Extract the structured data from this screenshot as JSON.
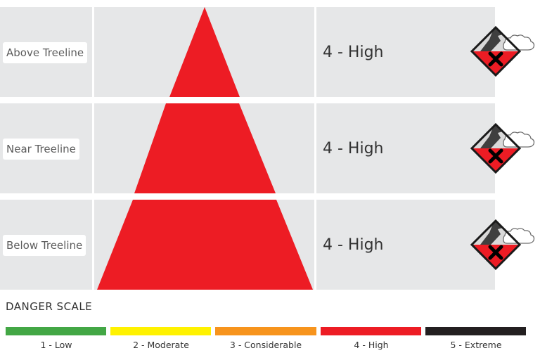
{
  "elevations": [
    {
      "label": "Above Treeline",
      "rating": "4 - High"
    },
    {
      "label": "Near Treeline",
      "rating": "4 - High"
    },
    {
      "label": "Below Treeline",
      "rating": "4 - High"
    }
  ],
  "icons": [
    "danger-level-4-high-icon",
    "danger-level-4-high-icon",
    "danger-level-4-high-icon"
  ],
  "danger_scale": {
    "title": "DANGER SCALE",
    "levels": [
      {
        "label": "1 - Low",
        "color": "#43a745"
      },
      {
        "label": "2 - Moderate",
        "color": "#fff200"
      },
      {
        "label": "3 - Considerable",
        "color": "#f7941d"
      },
      {
        "label": "4 - High",
        "color": "#ed1c24"
      },
      {
        "label": "5 - Extreme",
        "color": "#231f20"
      }
    ]
  },
  "colors": {
    "panel": "#e6e7e8",
    "danger_high": "#ed1c24"
  }
}
